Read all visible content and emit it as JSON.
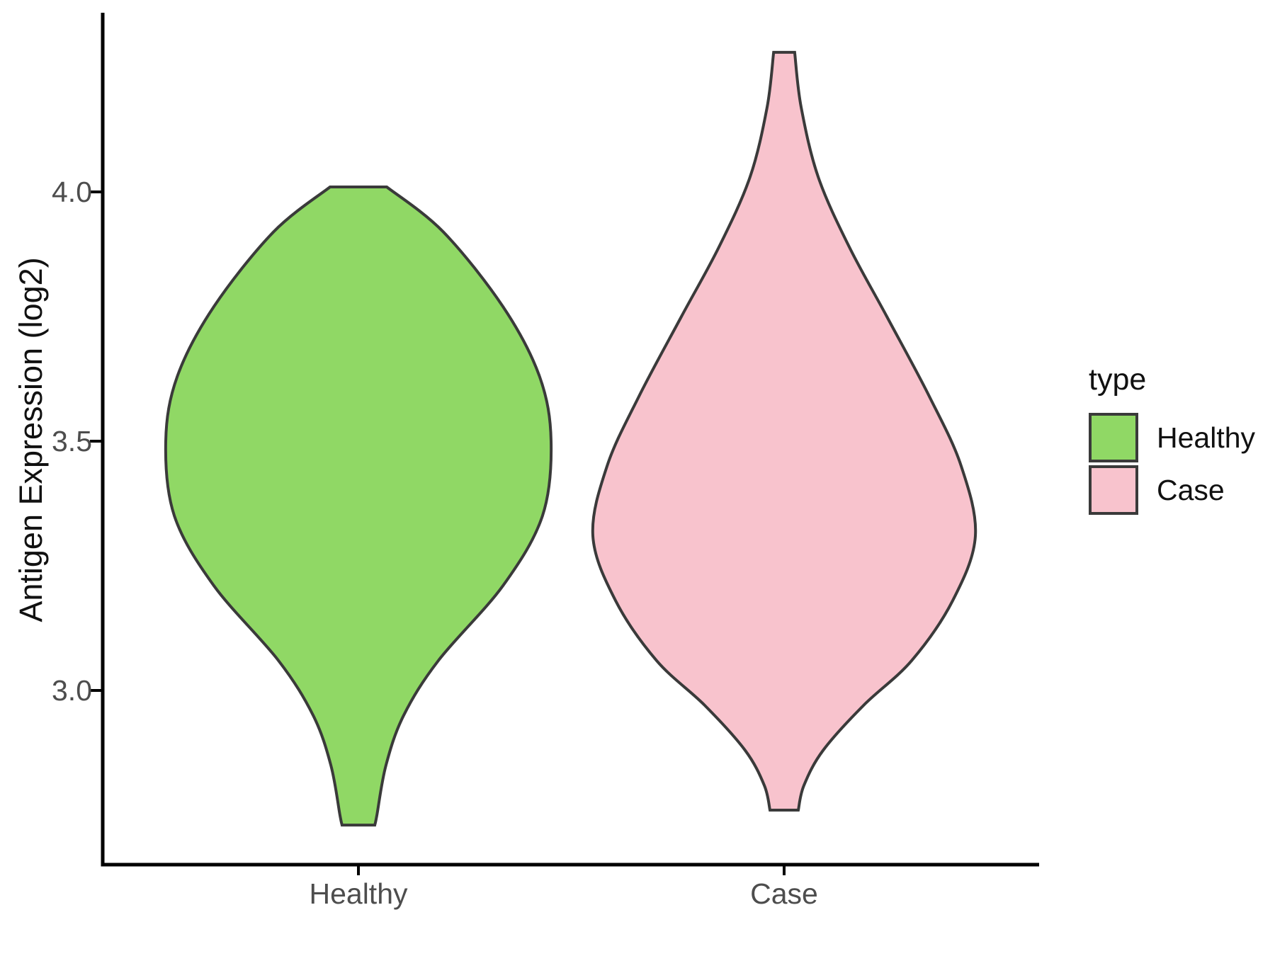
{
  "chart_data": {
    "type": "violin",
    "title": "",
    "xlabel": "",
    "ylabel": "Antigen Expression (log2)",
    "categories": [
      "Healthy",
      "Case"
    ],
    "yticks": [
      4.0,
      3.5,
      3.0
    ],
    "ytick_labels": [
      "4.0",
      "3.5",
      "3.0"
    ],
    "ylim_shown": [
      2.65,
      4.35
    ],
    "grid": false,
    "axis_color": "#000000",
    "tick_label_color": "#4d4d4d",
    "violin_outline_color": "#3a3a3a",
    "legend": {
      "title": "type",
      "position": "right",
      "entries": [
        {
          "label": "Healthy",
          "color": "#90d865"
        },
        {
          "label": "Case",
          "color": "#f8c3cd"
        }
      ]
    },
    "series": [
      {
        "name": "Healthy",
        "fill": "#90d865",
        "outline": "#3a3a3a",
        "value_min": 2.73,
        "value_max": 4.01,
        "peak_density_at": 3.5,
        "profile": [
          [
            4.01,
            0.147
          ],
          [
            3.92,
            0.44
          ],
          [
            3.77,
            0.75
          ],
          [
            3.63,
            0.94
          ],
          [
            3.5,
            1.0
          ],
          [
            3.35,
            0.955
          ],
          [
            3.21,
            0.75
          ],
          [
            3.06,
            0.415
          ],
          [
            2.95,
            0.235
          ],
          [
            2.85,
            0.143
          ],
          [
            2.75,
            0.096
          ],
          [
            2.73,
            0.085
          ]
        ]
      },
      {
        "name": "Case",
        "fill": "#f8c3cd",
        "outline": "#3a3a3a",
        "value_min": 2.76,
        "value_max": 4.28,
        "peak_density_at": 3.31,
        "profile": [
          [
            4.28,
            0.055
          ],
          [
            4.17,
            0.089
          ],
          [
            4.03,
            0.178
          ],
          [
            3.89,
            0.34
          ],
          [
            3.75,
            0.537
          ],
          [
            3.59,
            0.759
          ],
          [
            3.45,
            0.926
          ],
          [
            3.31,
            1.0
          ],
          [
            3.18,
            0.881
          ],
          [
            3.06,
            0.667
          ],
          [
            2.97,
            0.415
          ],
          [
            2.88,
            0.204
          ],
          [
            2.81,
            0.104
          ],
          [
            2.76,
            0.074
          ]
        ]
      }
    ]
  }
}
